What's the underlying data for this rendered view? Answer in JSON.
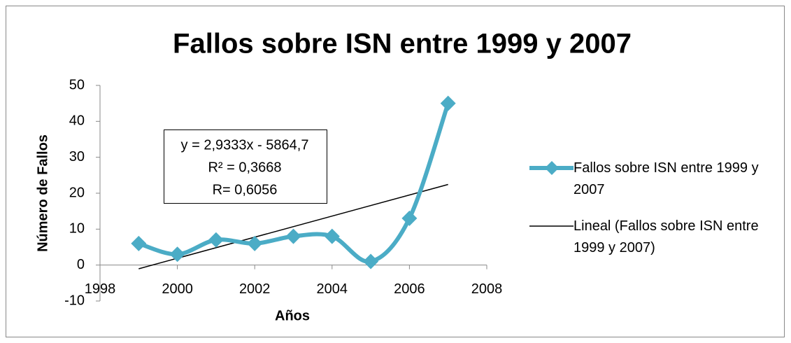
{
  "chart_data": {
    "type": "line",
    "title": "Fallos sobre ISN entre 1999 y 2007",
    "xlabel": "Años",
    "ylabel": "Número de Fallos",
    "x": [
      1999,
      2000,
      2001,
      2002,
      2003,
      2004,
      2005,
      2006,
      2007
    ],
    "series": [
      {
        "name": "Fallos sobre ISN entre 1999 y 2007",
        "color": "#4bacc6",
        "values": [
          6,
          3,
          7,
          6,
          8,
          8,
          1,
          13,
          45
        ]
      }
    ],
    "trendline": {
      "name": "Lineal (Fallos sobre ISN entre 1999 y 2007)",
      "color": "#000000",
      "slope": 2.9333,
      "intercept": -5864.7
    },
    "annotations": [
      "y = 2,9333x - 5864,7",
      "R² = 0,3668",
      "R= 0,6056"
    ],
    "xlim": [
      1998,
      2008
    ],
    "xticks": [
      1998,
      2000,
      2002,
      2004,
      2006,
      2008
    ],
    "ylim": [
      -10,
      50
    ],
    "yticks": [
      -10,
      0,
      10,
      20,
      30,
      40,
      50
    ],
    "grid": false,
    "legend": "right"
  }
}
